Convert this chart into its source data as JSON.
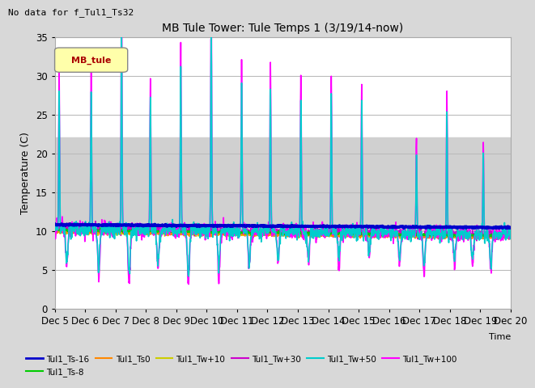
{
  "title": "MB Tule Tower: Tule Temps 1 (3/19/14-now)",
  "subtitle": "No data for f_Tul1_Ts32",
  "ylabel": "Temperature (C)",
  "xlabel": "Time",
  "ylim": [
    0,
    35
  ],
  "xlim": [
    0,
    15
  ],
  "shaded_ymin": 10,
  "shaded_ymax": 22,
  "legend_label": "MB_tule",
  "x_tick_labels": [
    "Dec 5",
    "Dec 6",
    "Dec 7",
    "Dec 8",
    "Dec 9",
    "Dec 10",
    "Dec 11",
    "Dec 12",
    "Dec 13",
    "Dec 14",
    "Dec 15",
    "Dec 16",
    "Dec 17",
    "Dec 18",
    "Dec 19",
    "Dec 20"
  ],
  "series": {
    "Tul1_Ts-16": {
      "color": "#0000cc",
      "linewidth": 2.5,
      "zorder": 6
    },
    "Tul1_Ts-8": {
      "color": "#00cc00",
      "linewidth": 1.2,
      "zorder": 4
    },
    "Tul1_Ts0": {
      "color": "#ff8800",
      "linewidth": 1.2,
      "zorder": 4
    },
    "Tul1_Tw+10": {
      "color": "#cccc00",
      "linewidth": 1.2,
      "zorder": 4
    },
    "Tul1_Tw+30": {
      "color": "#cc00cc",
      "linewidth": 1.2,
      "zorder": 4
    },
    "Tul1_Tw+50": {
      "color": "#00cccc",
      "linewidth": 1.2,
      "zorder": 5
    },
    "Tul1_Tw+100": {
      "color": "#ff00ff",
      "linewidth": 1.2,
      "zorder": 5
    }
  },
  "background_color": "#d8d8d8",
  "plot_bg_color": "#ffffff",
  "shaded_color": "#d0d0d0",
  "grid_color": "#bbbbbb"
}
